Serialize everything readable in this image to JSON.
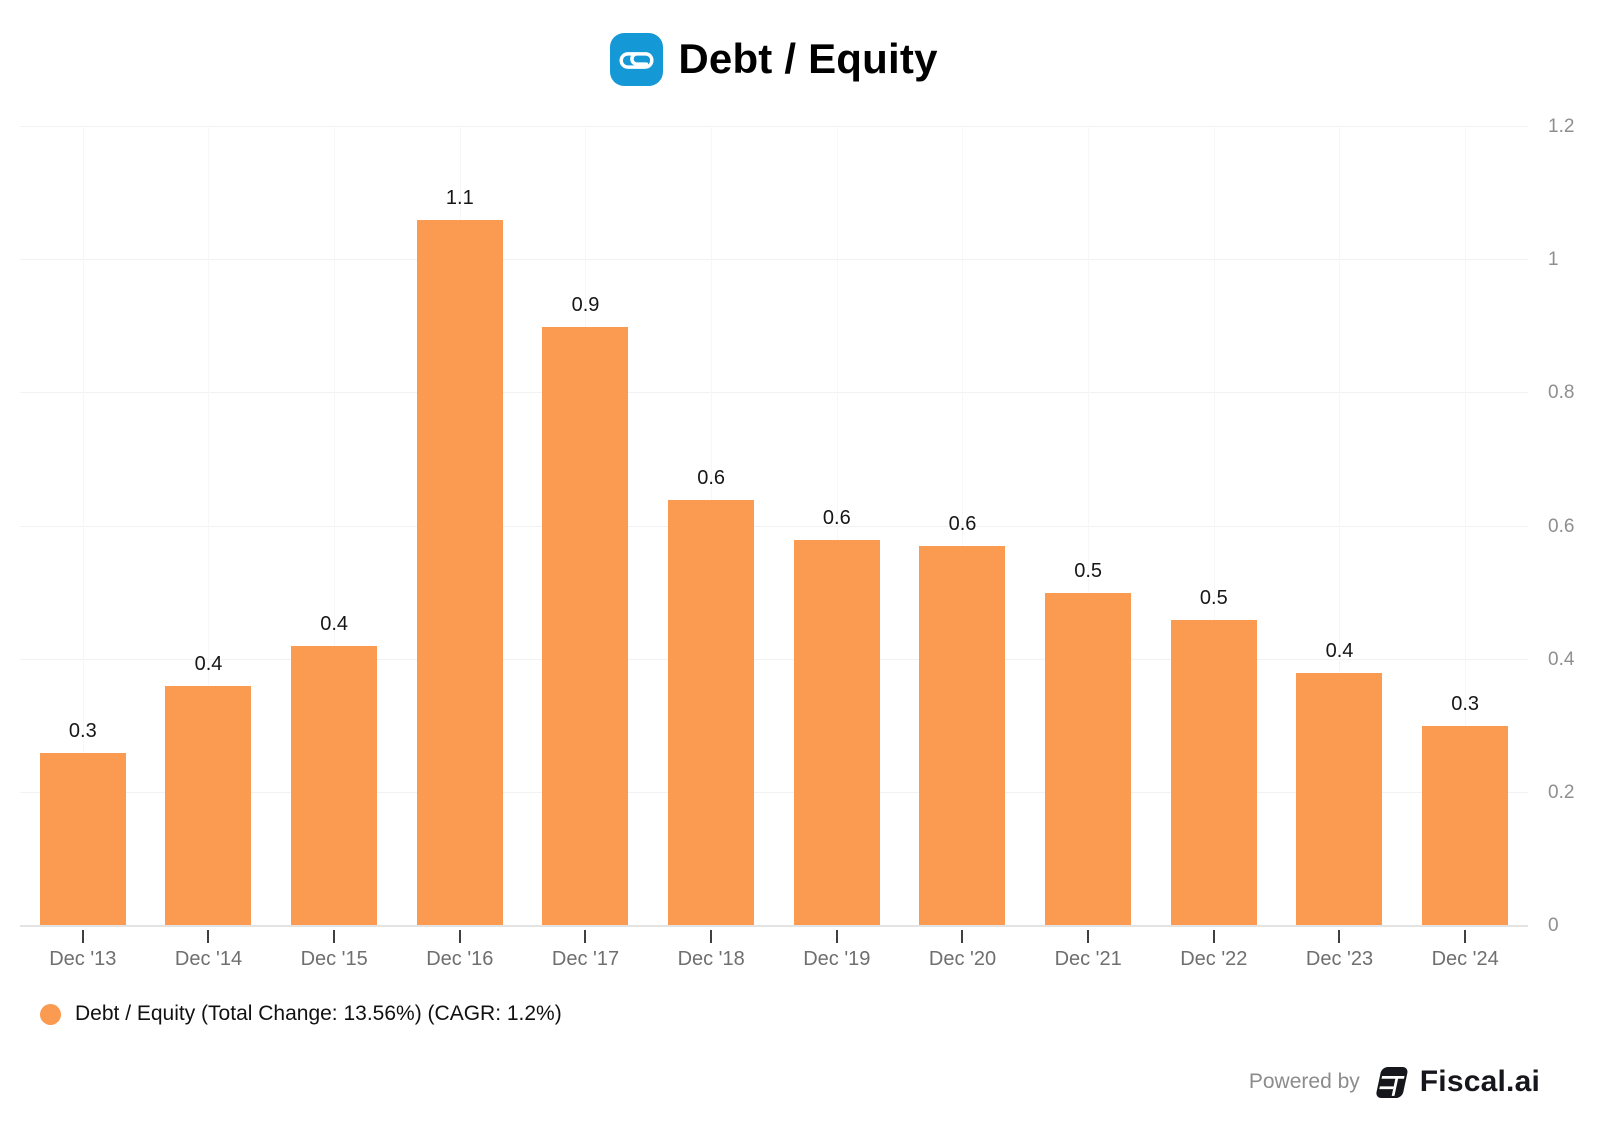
{
  "title": {
    "text": "Debt / Equity",
    "logo": "abbott-logo"
  },
  "chart_data": {
    "type": "bar",
    "title": "Debt / Equity",
    "categories": [
      "Dec '13",
      "Dec '14",
      "Dec '15",
      "Dec '16",
      "Dec '17",
      "Dec '18",
      "Dec '19",
      "Dec '20",
      "Dec '21",
      "Dec '22",
      "Dec '23",
      "Dec '24"
    ],
    "values": [
      0.26,
      0.36,
      0.42,
      1.06,
      0.9,
      0.64,
      0.58,
      0.57,
      0.5,
      0.46,
      0.38,
      0.3
    ],
    "bar_labels": [
      "0.3",
      "0.4",
      "0.4",
      "1.1",
      "0.9",
      "0.6",
      "0.6",
      "0.6",
      "0.5",
      "0.5",
      "0.4",
      "0.3"
    ],
    "xlabel": "",
    "ylabel": "",
    "ylim": [
      0,
      1.2
    ],
    "yticks": [
      0,
      0.2,
      0.4,
      0.6,
      0.8,
      1,
      1.2
    ],
    "ytick_labels": [
      "0",
      "0.2",
      "0.4",
      "0.6",
      "0.8",
      "1",
      "1.2"
    ],
    "y_axis_side": "right",
    "grid": true,
    "bar_color": "#fb9a51",
    "legend_position": "bottom-left"
  },
  "legend": {
    "label": "Debt / Equity (Total Change: 13.56%) (CAGR: 1.2%)",
    "marker_color": "#fb9a51",
    "marker_icon": "circle-marker"
  },
  "footer": {
    "powered_by": "Powered by",
    "brand": "Fiscal.ai"
  },
  "colors": {
    "bar": "#fb9a51",
    "abbott_blue": "#1598d6",
    "axis_line": "#e3e3e3",
    "brand_dark": "#16161d"
  }
}
